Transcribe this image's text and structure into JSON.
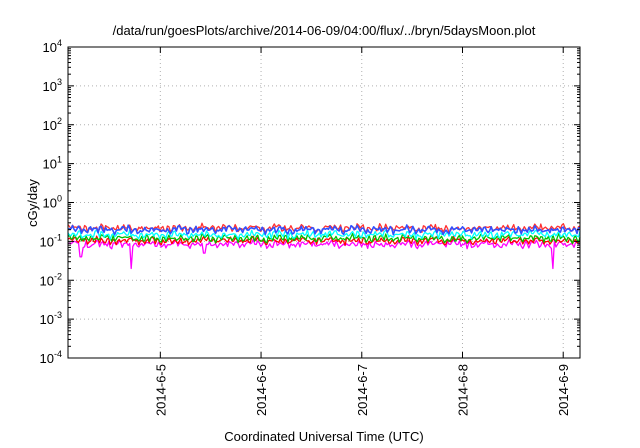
{
  "chart_data": {
    "type": "line",
    "title": "/data/run/goesPlots/archive/2014-06-09/04:00/flux/../bryn/5daysMoon.plot",
    "xlabel": "Coordinated Universal Time (UTC)",
    "ylabel": "cGy/day",
    "y_scale": "log",
    "ylim": [
      0.0001,
      10000
    ],
    "xlim": [
      "2014-06-04 02:00",
      "2014-06-09 04:00"
    ],
    "grid": true,
    "legend": "none",
    "y_ticks": [
      {
        "value": 0.0001,
        "base": "10",
        "exp": "-4"
      },
      {
        "value": 0.001,
        "base": "10",
        "exp": "-3"
      },
      {
        "value": 0.01,
        "base": "10",
        "exp": "-2"
      },
      {
        "value": 0.1,
        "base": "10",
        "exp": "-1"
      },
      {
        "value": 1,
        "base": "10",
        "exp": "0"
      },
      {
        "value": 10,
        "base": "10",
        "exp": "1"
      },
      {
        "value": 100,
        "base": "10",
        "exp": "2"
      },
      {
        "value": 1000,
        "base": "10",
        "exp": "3"
      },
      {
        "value": 10000,
        "base": "10",
        "exp": "4"
      }
    ],
    "x_ticks": [
      {
        "value": "2014-06-05 00:00",
        "label": "2014-6-5"
      },
      {
        "value": "2014-06-06 00:00",
        "label": "2014-6-6"
      },
      {
        "value": "2014-06-07 00:00",
        "label": "2014-6-7"
      },
      {
        "value": "2014-06-08 00:00",
        "label": "2014-6-8"
      },
      {
        "value": "2014-06-09 00:00",
        "label": "2014-6-9"
      }
    ],
    "series": [
      {
        "color": "#ff00ff",
        "level": 0.085
      },
      {
        "color": "#ff0000",
        "level": 0.105
      },
      {
        "color": "#00c000",
        "level": 0.12
      },
      {
        "color": "#00ffff",
        "level": 0.15
      },
      {
        "color": "#ff3030",
        "level": 0.22
      },
      {
        "color": "#3050ff",
        "level": 0.2
      }
    ],
    "dips": [
      {
        "x": "2014-06-04 05:00",
        "y": 0.04
      },
      {
        "x": "2014-06-04 17:00",
        "y": 0.02
      },
      {
        "x": "2014-06-05 10:30",
        "y": 0.05
      },
      {
        "x": "2014-06-08 21:30",
        "y": 0.02
      }
    ]
  }
}
